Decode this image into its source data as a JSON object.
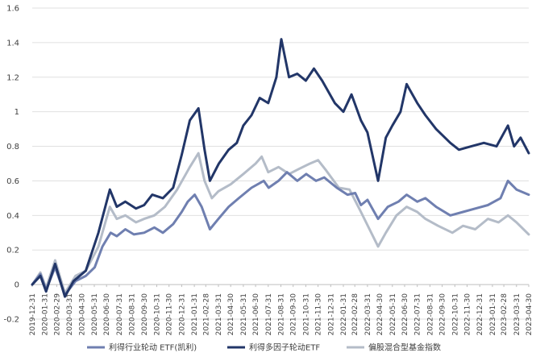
{
  "chart_data": {
    "type": "line",
    "title": "",
    "xlabel": "",
    "ylabel": "",
    "ylim": [
      -0.2,
      1.6
    ],
    "yticks": [
      "-0.2",
      "0",
      "0.2",
      "0.4",
      "0.6",
      "0.8",
      "1",
      "1.2",
      "1.4",
      "1.6"
    ],
    "ytick_values": [
      -0.2,
      0,
      0.2,
      0.4,
      0.6,
      0.8,
      1.0,
      1.2,
      1.4,
      1.6
    ],
    "xlim": [
      "2019-12-31",
      "2023-04-30"
    ],
    "x_tick_labels": [
      "2019-12-31",
      "2020-01-31",
      "2020-02-29",
      "2020-03-31",
      "2020-04-30",
      "2020-05-31",
      "2020-06-30",
      "2020-07-31",
      "2020-08-31",
      "2020-09-30",
      "2020-10-31",
      "2020-11-30",
      "2020-12-31",
      "2021-01-31",
      "2021-02-28",
      "2021-03-31",
      "2021-04-30",
      "2021-05-31",
      "2021-06-30",
      "2021-07-31",
      "2021-08-31",
      "2021-09-30",
      "2021-10-31",
      "2021-11-30",
      "2021-12-31",
      "2022-01-31",
      "2022-02-28",
      "2022-03-31",
      "2022-04-30",
      "2022-05-31",
      "2022-06-30",
      "2022-07-31",
      "2022-08-31",
      "2022-09-30",
      "2022-10-31",
      "2022-11-30",
      "2022-12-31",
      "2023-01-31",
      "2023-02-28",
      "2023-03-31",
      "2023-04-30"
    ],
    "grid": "horizontal",
    "legend_position": "bottom",
    "series": [
      {
        "name": "利得行业轮动 ETF(凯利)",
        "color": "#6f7fb0",
        "points": [
          [
            "2019-12-31",
            0.0
          ],
          [
            "2020-01-20",
            0.06
          ],
          [
            "2020-02-03",
            -0.03
          ],
          [
            "2020-02-25",
            0.1
          ],
          [
            "2020-03-20",
            -0.06
          ],
          [
            "2020-04-15",
            0.02
          ],
          [
            "2020-05-10",
            0.05
          ],
          [
            "2020-06-01",
            0.1
          ],
          [
            "2020-06-20",
            0.22
          ],
          [
            "2020-07-10",
            0.3
          ],
          [
            "2020-07-25",
            0.28
          ],
          [
            "2020-08-15",
            0.32
          ],
          [
            "2020-09-05",
            0.29
          ],
          [
            "2020-09-30",
            0.3
          ],
          [
            "2020-10-25",
            0.33
          ],
          [
            "2020-11-15",
            0.3
          ],
          [
            "2020-12-10",
            0.35
          ],
          [
            "2020-12-31",
            0.42
          ],
          [
            "2021-01-15",
            0.48
          ],
          [
            "2021-02-01",
            0.52
          ],
          [
            "2021-02-18",
            0.45
          ],
          [
            "2021-03-10",
            0.32
          ],
          [
            "2021-03-31",
            0.38
          ],
          [
            "2021-04-25",
            0.45
          ],
          [
            "2021-05-20",
            0.5
          ],
          [
            "2021-06-20",
            0.56
          ],
          [
            "2021-07-20",
            0.6
          ],
          [
            "2021-08-01",
            0.56
          ],
          [
            "2021-08-25",
            0.6
          ],
          [
            "2021-09-15",
            0.65
          ],
          [
            "2021-10-10",
            0.6
          ],
          [
            "2021-11-01",
            0.64
          ],
          [
            "2021-11-25",
            0.6
          ],
          [
            "2021-12-15",
            0.62
          ],
          [
            "2022-01-15",
            0.56
          ],
          [
            "2022-02-10",
            0.52
          ],
          [
            "2022-03-01",
            0.53
          ],
          [
            "2022-03-15",
            0.46
          ],
          [
            "2022-03-31",
            0.49
          ],
          [
            "2022-04-26",
            0.38
          ],
          [
            "2022-05-20",
            0.45
          ],
          [
            "2022-06-15",
            0.48
          ],
          [
            "2022-07-05",
            0.52
          ],
          [
            "2022-07-31",
            0.48
          ],
          [
            "2022-08-20",
            0.5
          ],
          [
            "2022-09-15",
            0.45
          ],
          [
            "2022-10-20",
            0.4
          ],
          [
            "2022-11-20",
            0.42
          ],
          [
            "2022-12-20",
            0.44
          ],
          [
            "2023-01-20",
            0.46
          ],
          [
            "2023-02-20",
            0.5
          ],
          [
            "2023-03-10",
            0.6
          ],
          [
            "2023-03-31",
            0.55
          ],
          [
            "2023-04-30",
            0.52
          ]
        ]
      },
      {
        "name": "利得多因子轮动ETF",
        "color": "#223668",
        "points": [
          [
            "2019-12-31",
            0.0
          ],
          [
            "2020-01-20",
            0.05
          ],
          [
            "2020-02-03",
            -0.04
          ],
          [
            "2020-02-25",
            0.12
          ],
          [
            "2020-03-20",
            -0.07
          ],
          [
            "2020-04-10",
            0.02
          ],
          [
            "2020-05-10",
            0.08
          ],
          [
            "2020-06-10",
            0.3
          ],
          [
            "2020-07-08",
            0.55
          ],
          [
            "2020-07-25",
            0.45
          ],
          [
            "2020-08-15",
            0.48
          ],
          [
            "2020-09-10",
            0.44
          ],
          [
            "2020-09-30",
            0.46
          ],
          [
            "2020-10-20",
            0.52
          ],
          [
            "2020-11-15",
            0.5
          ],
          [
            "2020-12-10",
            0.56
          ],
          [
            "2020-12-31",
            0.75
          ],
          [
            "2021-01-20",
            0.95
          ],
          [
            "2021-02-10",
            1.02
          ],
          [
            "2021-02-25",
            0.78
          ],
          [
            "2021-03-10",
            0.6
          ],
          [
            "2021-04-01",
            0.7
          ],
          [
            "2021-04-25",
            0.78
          ],
          [
            "2021-05-15",
            0.82
          ],
          [
            "2021-05-31",
            0.92
          ],
          [
            "2021-06-20",
            0.98
          ],
          [
            "2021-07-10",
            1.08
          ],
          [
            "2021-07-31",
            1.05
          ],
          [
            "2021-08-20",
            1.2
          ],
          [
            "2021-09-01",
            1.42
          ],
          [
            "2021-09-20",
            1.2
          ],
          [
            "2021-10-10",
            1.22
          ],
          [
            "2021-10-31",
            1.18
          ],
          [
            "2021-11-20",
            1.25
          ],
          [
            "2021-12-10",
            1.18
          ],
          [
            "2022-01-10",
            1.05
          ],
          [
            "2022-01-31",
            1.0
          ],
          [
            "2022-02-20",
            1.1
          ],
          [
            "2022-03-15",
            0.95
          ],
          [
            "2022-03-31",
            0.88
          ],
          [
            "2022-04-26",
            0.6
          ],
          [
            "2022-05-15",
            0.85
          ],
          [
            "2022-05-31",
            0.92
          ],
          [
            "2022-06-20",
            1.0
          ],
          [
            "2022-07-05",
            1.16
          ],
          [
            "2022-07-31",
            1.05
          ],
          [
            "2022-08-20",
            0.98
          ],
          [
            "2022-09-15",
            0.9
          ],
          [
            "2022-10-20",
            0.82
          ],
          [
            "2022-11-10",
            0.78
          ],
          [
            "2022-12-10",
            0.8
          ],
          [
            "2023-01-10",
            0.82
          ],
          [
            "2023-02-10",
            0.8
          ],
          [
            "2023-03-10",
            0.92
          ],
          [
            "2023-03-25",
            0.8
          ],
          [
            "2023-04-10",
            0.85
          ],
          [
            "2023-04-30",
            0.76
          ]
        ]
      },
      {
        "name": "偏股混合型基金指数",
        "color": "#b4bcc8",
        "points": [
          [
            "2019-12-31",
            0.0
          ],
          [
            "2020-01-20",
            0.07
          ],
          [
            "2020-02-03",
            -0.02
          ],
          [
            "2020-02-25",
            0.14
          ],
          [
            "2020-03-20",
            -0.05
          ],
          [
            "2020-04-15",
            0.05
          ],
          [
            "2020-05-10",
            0.08
          ],
          [
            "2020-06-10",
            0.22
          ],
          [
            "2020-07-08",
            0.45
          ],
          [
            "2020-07-25",
            0.38
          ],
          [
            "2020-08-15",
            0.4
          ],
          [
            "2020-09-10",
            0.36
          ],
          [
            "2020-09-30",
            0.38
          ],
          [
            "2020-10-25",
            0.4
          ],
          [
            "2020-11-20",
            0.45
          ],
          [
            "2020-12-20",
            0.55
          ],
          [
            "2021-01-20",
            0.68
          ],
          [
            "2021-02-10",
            0.76
          ],
          [
            "2021-02-25",
            0.6
          ],
          [
            "2021-03-15",
            0.5
          ],
          [
            "2021-03-31",
            0.54
          ],
          [
            "2021-04-30",
            0.58
          ],
          [
            "2021-05-31",
            0.64
          ],
          [
            "2021-06-30",
            0.7
          ],
          [
            "2021-07-15",
            0.74
          ],
          [
            "2021-07-31",
            0.65
          ],
          [
            "2021-08-25",
            0.68
          ],
          [
            "2021-09-20",
            0.64
          ],
          [
            "2021-10-15",
            0.67
          ],
          [
            "2021-11-10",
            0.7
          ],
          [
            "2021-11-30",
            0.72
          ],
          [
            "2021-12-20",
            0.66
          ],
          [
            "2022-01-20",
            0.56
          ],
          [
            "2022-02-15",
            0.55
          ],
          [
            "2022-03-15",
            0.42
          ],
          [
            "2022-04-26",
            0.22
          ],
          [
            "2022-05-15",
            0.3
          ],
          [
            "2022-06-10",
            0.4
          ],
          [
            "2022-07-05",
            0.45
          ],
          [
            "2022-07-31",
            0.42
          ],
          [
            "2022-08-20",
            0.38
          ],
          [
            "2022-09-20",
            0.34
          ],
          [
            "2022-10-25",
            0.3
          ],
          [
            "2022-11-20",
            0.34
          ],
          [
            "2022-12-20",
            0.32
          ],
          [
            "2023-01-20",
            0.38
          ],
          [
            "2023-02-15",
            0.36
          ],
          [
            "2023-03-10",
            0.4
          ],
          [
            "2023-03-31",
            0.36
          ],
          [
            "2023-04-30",
            0.29
          ]
        ]
      }
    ]
  }
}
